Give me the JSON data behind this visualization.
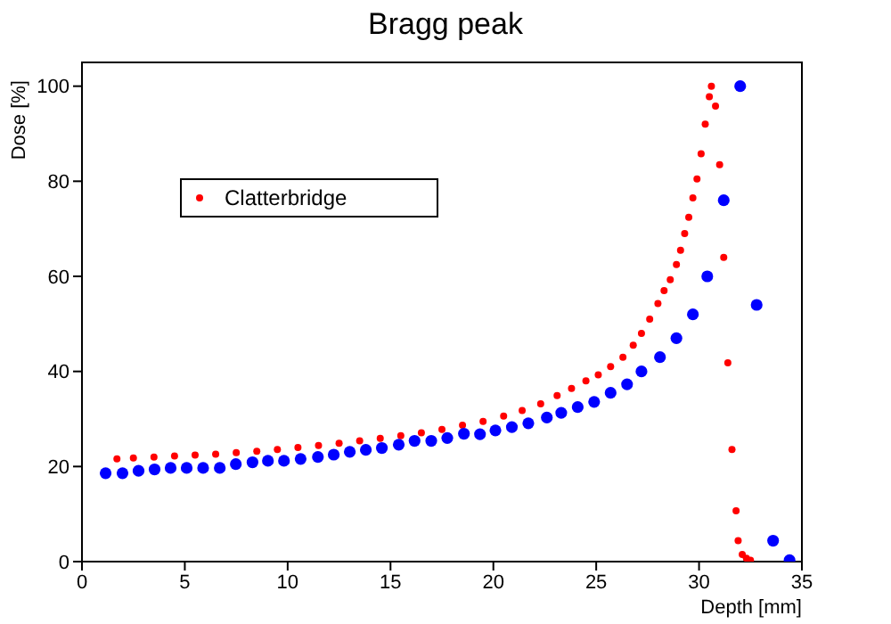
{
  "chart_data": {
    "type": "scatter",
    "title": "Bragg peak",
    "xlabel": "Depth [mm]",
    "ylabel": "Dose [%]",
    "xlim": [
      0,
      35
    ],
    "xticks": [
      0,
      5,
      10,
      15,
      20,
      25,
      30,
      35
    ],
    "ylim": [
      0,
      105
    ],
    "yticks": [
      0,
      20,
      40,
      60,
      80,
      100
    ],
    "legend": "top left",
    "marker": "circle",
    "series": [
      {
        "name": "Clatterbridge",
        "color": "#ff0000",
        "x": [
          1.7,
          2.5,
          3.5,
          4.5,
          5.5,
          6.5,
          7.5,
          8.5,
          9.5,
          10.5,
          11.5,
          12.5,
          13.5,
          14.5,
          15.5,
          16.5,
          17.5,
          18.5,
          19.5,
          20.5,
          21.4,
          22.3,
          23.1,
          23.8,
          24.5,
          25.1,
          25.7,
          26.3,
          26.8,
          27.2,
          27.6,
          28.0,
          28.3,
          28.6,
          28.9,
          29.1,
          29.3,
          29.5,
          29.7,
          29.9,
          30.1,
          30.3,
          30.5,
          30.6,
          30.8,
          31.0,
          31.2,
          31.4,
          31.6,
          31.8,
          31.9,
          32.1,
          32.3,
          32.5
        ],
        "values": [
          21.6,
          21.8,
          22.0,
          22.2,
          22.4,
          22.6,
          22.9,
          23.2,
          23.6,
          24.0,
          24.4,
          24.9,
          25.4,
          25.9,
          26.5,
          27.1,
          27.8,
          28.7,
          29.5,
          30.6,
          31.8,
          33.2,
          34.9,
          36.4,
          38.0,
          39.3,
          41.0,
          43.0,
          45.5,
          48.0,
          51.0,
          54.3,
          57.0,
          59.3,
          62.5,
          65.5,
          69.0,
          72.4,
          76.5,
          80.5,
          85.8,
          92.0,
          97.8,
          100,
          95.8,
          83.5,
          64.0,
          41.8,
          23.6,
          10.7,
          4.4,
          1.5,
          0.7,
          0.3
        ]
      },
      {
        "color": "#0000ff",
        "x": [
          1.15,
          1.97,
          2.75,
          3.53,
          4.31,
          5.09,
          5.89,
          6.7,
          7.48,
          8.29,
          9.04,
          9.82,
          10.63,
          11.47,
          12.24,
          13.02,
          13.8,
          14.58,
          15.4,
          16.17,
          16.98,
          17.76,
          18.57,
          19.35,
          20.1,
          20.9,
          21.7,
          22.6,
          23.3,
          24.1,
          24.9,
          25.7,
          26.5,
          27.2,
          28.1,
          28.9,
          29.7,
          30.4,
          31.2,
          32.0,
          32.8,
          33.6,
          34.4
        ],
        "values": [
          18.6,
          18.6,
          19.1,
          19.4,
          19.7,
          19.7,
          19.7,
          19.7,
          20.5,
          20.9,
          21.2,
          21.2,
          21.6,
          22.0,
          22.5,
          23.1,
          23.5,
          23.9,
          24.6,
          25.4,
          25.4,
          26.0,
          26.9,
          26.8,
          27.6,
          28.3,
          29.1,
          30.3,
          31.3,
          32.5,
          33.6,
          35.5,
          37.3,
          40.0,
          43.0,
          47.0,
          52.0,
          60.0,
          76.0,
          100,
          54.0,
          4.4,
          0.3
        ]
      }
    ]
  }
}
